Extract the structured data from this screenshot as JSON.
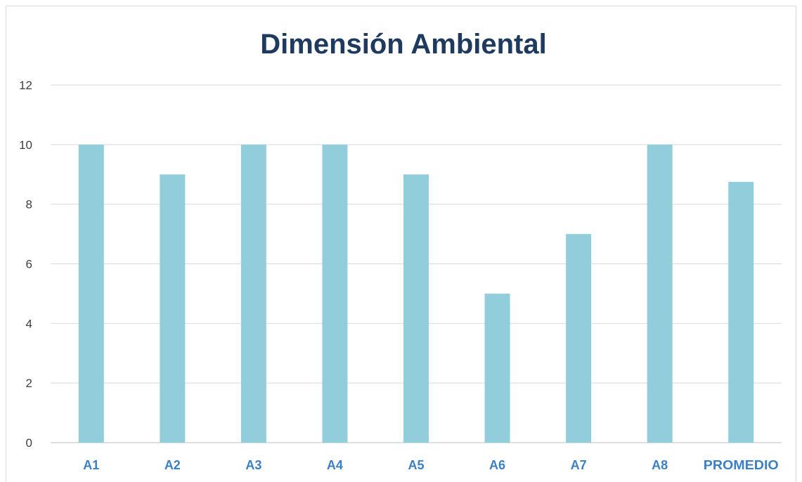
{
  "chart_data": {
    "type": "bar",
    "title": "Dimensión Ambiental",
    "categories": [
      "A1",
      "A2",
      "A3",
      "A4",
      "A5",
      "A6",
      "A7",
      "A8",
      "PROMEDIO"
    ],
    "values": [
      10,
      9,
      10,
      10,
      9,
      5,
      7,
      10,
      8.75
    ],
    "ylim": [
      0,
      12
    ],
    "yticks": [
      "0",
      "2",
      "4",
      "6",
      "8",
      "10",
      "12"
    ],
    "xlabel": "",
    "ylabel": "",
    "grid": true,
    "legend": "none",
    "colors": {
      "bar": "#92cddc",
      "grid": "#d9d9d9",
      "title": "#1f3a5f",
      "xtick": "#3b7fc4",
      "ytick": "#404040"
    }
  }
}
